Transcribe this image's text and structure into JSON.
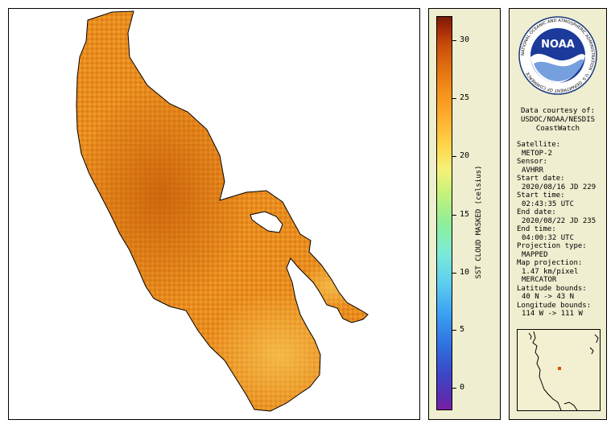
{
  "colorbar": {
    "title": "SST CLOUD MASKED (celsius)",
    "ticks": [
      "30",
      "25",
      "20",
      "15",
      "10",
      "5",
      "0"
    ]
  },
  "logo": {
    "text": "NOAA",
    "ring_text": "NATIONAL OCEANIC AND ATMOSPHERIC ADMINISTRATION · U.S. DEPARTMENT OF COMMERCE"
  },
  "courtesy": [
    "Data courtesy of:",
    "USDOC/NOAA/NESDIS",
    "CoastWatch"
  ],
  "metadata": [
    {
      "label": "Satellite:",
      "value": "METOP-2"
    },
    {
      "label": "Sensor:",
      "value": "AVHRR"
    },
    {
      "label": "Start date:",
      "value": "2020/08/16 JD 229"
    },
    {
      "label": "Start time:",
      "value": "02:43:35 UTC"
    },
    {
      "label": "End date:",
      "value": "2020/08/22 JD 235"
    },
    {
      "label": "End time:",
      "value": "04:00:32 UTC"
    },
    {
      "label": "Projection type:",
      "value": "MAPPED"
    },
    {
      "label": "Map projection:",
      "value": "1.47 km/pixel"
    },
    {
      "label": "",
      "value": "MERCATOR"
    },
    {
      "label": "Latitude bounds:",
      "value": "40 N -> 43 N"
    },
    {
      "label": "Longitude bounds:",
      "value": "114 W -> 111 W"
    }
  ],
  "colors": {
    "panel_bg": "#efeed0",
    "lake_main": "#e68a1e",
    "lake_dark": "#c8620a",
    "lake_light": "#f5b545"
  }
}
